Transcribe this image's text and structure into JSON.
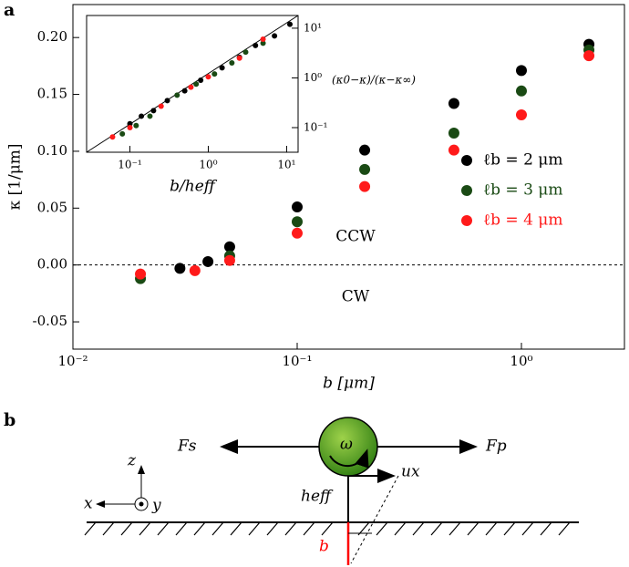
{
  "figure": {
    "panel_a": "a",
    "panel_b": "b"
  },
  "chart_data": [
    {
      "type": "scatter",
      "xlabel": "b [μm]",
      "ylabel": "κ [1/μm]",
      "xlog": true,
      "x": [
        0.02,
        0.03,
        0.035,
        0.04,
        0.05,
        0.1,
        0.2,
        0.5,
        1,
        2
      ],
      "xlim": [
        0.01,
        2.88
      ],
      "xticks": [
        {
          "value": 0.01,
          "label": "10⁻²"
        },
        {
          "value": 0.1,
          "label": "10⁻¹"
        },
        {
          "value": 1,
          "label": "10⁰"
        }
      ],
      "ylim": [
        -0.074,
        0.229
      ],
      "yticks": [
        -0.05,
        {
          "value": 0,
          "label": "0.00"
        },
        0.05,
        {
          "value": 0.1,
          "label": "0.10"
        },
        0.15,
        {
          "value": 0.2,
          "label": "0.20"
        }
      ],
      "annotations": [
        "CCW",
        "CW"
      ],
      "legend": "lower right",
      "series": [
        {
          "name": "ℓb = 2 μm",
          "color": "#000000",
          "values": [
            null,
            -0.003,
            null,
            0.003,
            0.016,
            0.051,
            0.101,
            0.142,
            0.171,
            0.194
          ]
        },
        {
          "name": "ℓb = 3 μm",
          "color": "#1a4a14",
          "values": [
            -0.012,
            null,
            null,
            null,
            0.008,
            0.038,
            0.084,
            0.116,
            0.153,
            0.189
          ]
        },
        {
          "name": "ℓb = 4 μm",
          "color": "#ff1a1a",
          "values": [
            -0.008,
            null,
            -0.005,
            null,
            0.004,
            0.028,
            0.069,
            0.101,
            0.132,
            0.184
          ]
        }
      ]
    },
    {
      "type": "scatter",
      "xlabel": "b/heff",
      "ylabel": "(κ0−κ)/(κ−κ∞)",
      "xlog": true,
      "ylog": true,
      "yaxis_side": "right",
      "xlim": [
        0.028,
        14
      ],
      "xticks": [
        {
          "value": 0.1,
          "label": "10⁻¹"
        },
        {
          "value": 1,
          "label": "10⁰"
        },
        {
          "value": 10,
          "label": "10¹"
        }
      ],
      "ylim": [
        0.032,
        18
      ],
      "yticks": [
        {
          "value": 0.1,
          "label": "10⁻¹"
        },
        {
          "value": 1,
          "label": "10⁰"
        },
        {
          "value": 10,
          "label": "10¹"
        }
      ],
      "series": [
        {
          "color": "#000000",
          "x": [
            0.1,
            0.14,
            0.2,
            0.3,
            0.5,
            0.8,
            1.5,
            2.5,
            4,
            7,
            11
          ],
          "values": [
            0.12,
            0.17,
            0.22,
            0.35,
            0.55,
            0.9,
            1.6,
            2.6,
            4.5,
            7,
            12
          ]
        },
        {
          "color": "#1a4a14",
          "x": [
            0.08,
            0.12,
            0.18,
            0.4,
            0.7,
            1.2,
            2,
            3,
            5
          ],
          "values": [
            0.075,
            0.11,
            0.17,
            0.45,
            0.75,
            1.2,
            2,
            3.3,
            5
          ]
        },
        {
          "color": "#ff1a1a",
          "x": [
            0.06,
            0.1,
            0.25,
            0.6,
            1.0,
            2.5,
            5
          ],
          "values": [
            0.065,
            0.1,
            0.27,
            0.65,
            1.05,
            2.5,
            6
          ]
        }
      ]
    }
  ],
  "diagram": {
    "Fs": "Fs",
    "Fp": "Fp",
    "omega": "ω",
    "ux": "ux",
    "heff": "heff",
    "b": "b",
    "z": "z",
    "x": "x",
    "y": "y"
  }
}
